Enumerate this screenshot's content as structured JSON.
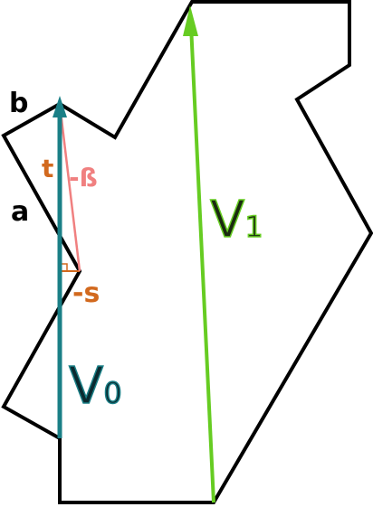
{
  "labels": {
    "b": "b",
    "a": "a",
    "t": "t",
    "beta": "-ß",
    "s": "-s"
  },
  "vectors": [
    {
      "name": "V",
      "sub": "0"
    },
    {
      "name": "V",
      "sub": "1"
    }
  ]
}
